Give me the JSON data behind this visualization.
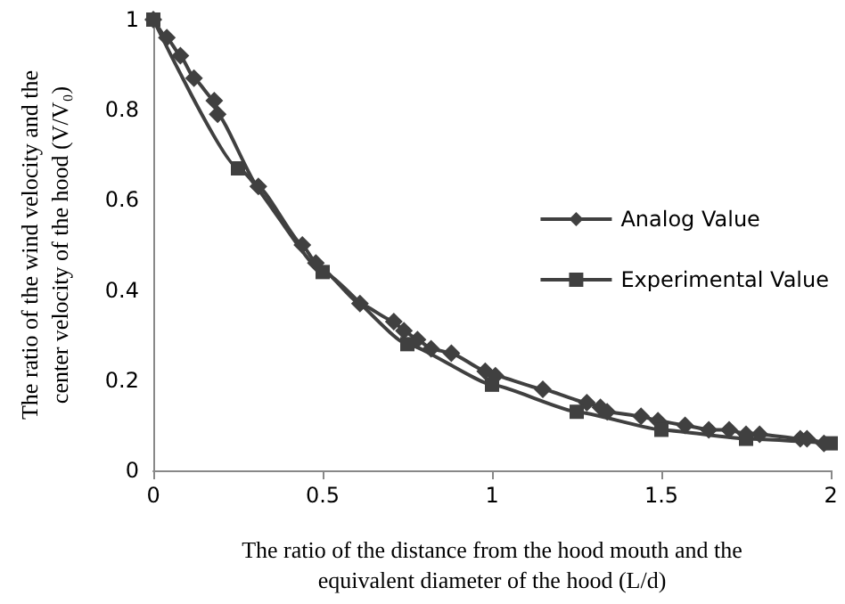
{
  "chart_data": {
    "type": "line",
    "xlabel": "The ratio of the distance from the hood mouth and the equivalent diameter of the hood (L/d)",
    "ylabel": "The ratio of the wind velocity and the center velocity of the hood (V/V₀)",
    "xlim": [
      0,
      2
    ],
    "xticks": [
      0,
      0.5,
      1,
      1.5,
      2
    ],
    "ylim": [
      0,
      1
    ],
    "yticks": [
      0,
      0.2,
      0.4,
      0.6,
      0.8,
      1
    ],
    "grid": false,
    "legend": "right",
    "line_style": "solid",
    "series": [
      {
        "name": "Analog Value",
        "color": "#404040",
        "marker": "diamond",
        "x": [
          0,
          0.04,
          0.08,
          0.12,
          0.18,
          0.19,
          0.31,
          0.44,
          0.48,
          0.61,
          0.71,
          0.74,
          0.78,
          0.82,
          0.88,
          0.98,
          1.01,
          1.15,
          1.28,
          1.32,
          1.34,
          1.44,
          1.49,
          1.57,
          1.64,
          1.7,
          1.75,
          1.79,
          1.91,
          1.93,
          1.98
        ],
        "values": [
          1,
          0.96,
          0.92,
          0.87,
          0.82,
          0.79,
          0.63,
          0.5,
          0.46,
          0.37,
          0.33,
          0.31,
          0.29,
          0.27,
          0.26,
          0.22,
          0.21,
          0.18,
          0.15,
          0.14,
          0.13,
          0.12,
          0.11,
          0.1,
          0.09,
          0.09,
          0.08,
          0.08,
          0.07,
          0.07,
          0.06
        ]
      },
      {
        "name": "Experimental Value",
        "color": "#404040",
        "marker": "square",
        "x": [
          0,
          0.25,
          0.5,
          0.75,
          1,
          1.25,
          1.5,
          1.75,
          2
        ],
        "values": [
          1,
          0.67,
          0.44,
          0.28,
          0.19,
          0.13,
          0.09,
          0.07,
          0.06
        ]
      }
    ]
  }
}
